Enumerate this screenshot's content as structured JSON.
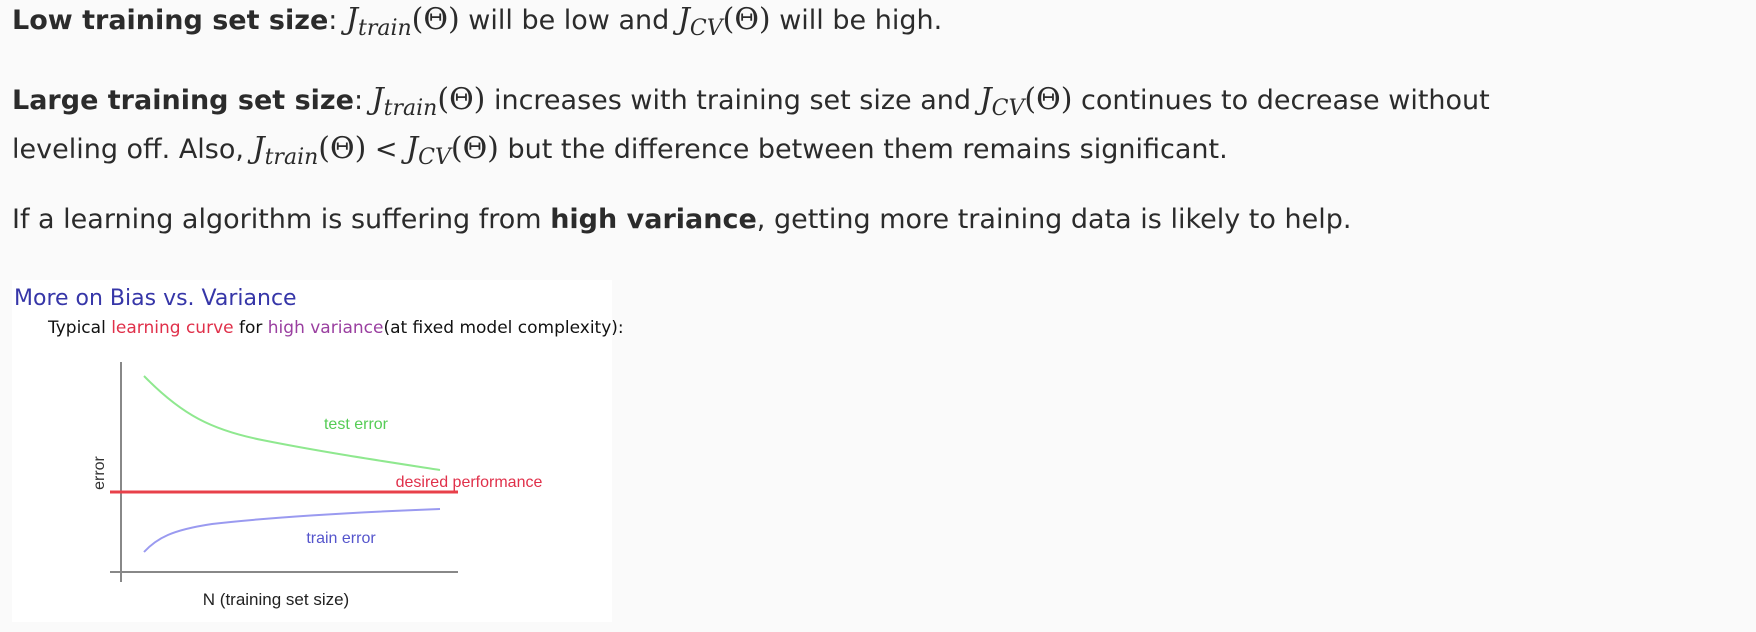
{
  "paragraph_low": {
    "label": "Low training set size",
    "sep": ": ",
    "j1": "J",
    "j1_sub": "train",
    "theta": "(Θ)",
    "text1": " will be low and ",
    "j2": "J",
    "j2_sub": "CV",
    "text2": " will be high."
  },
  "paragraph_large": {
    "label": "Large training set size",
    "sep": ": ",
    "j1": "J",
    "j1_sub": "train",
    "theta": "(Θ)",
    "text1": " increases with training set size and ",
    "j2": "J",
    "j2_sub": "CV",
    "text2": " continues to decrease without",
    "line2_start": "leveling off. Also, ",
    "j3": "J",
    "j3_sub": "train",
    "lt": " < ",
    "j4": "J",
    "j4_sub": "CV",
    "text3": " but the difference between them remains significant."
  },
  "paragraph_variance": {
    "text1": "If a learning algorithm is suffering from ",
    "bold": "high variance",
    "text2": ", getting more training data is likely to help."
  },
  "figure": {
    "title": "More on Bias vs. Variance",
    "subtitle_1": "Typical ",
    "subtitle_red": "learning curve",
    "subtitle_2": " for ",
    "subtitle_purple": "high variance",
    "subtitle_3": "(at fixed model complexity):",
    "y_label": "error",
    "x_label": "N (training set size)",
    "test_error_label": "test error",
    "desired_label": "desired performance",
    "train_error_label": "train error",
    "colors": {
      "test": "#8fe88f",
      "train": "#9a9af0",
      "desired": "#e8404a",
      "axis": "#888888"
    }
  }
}
